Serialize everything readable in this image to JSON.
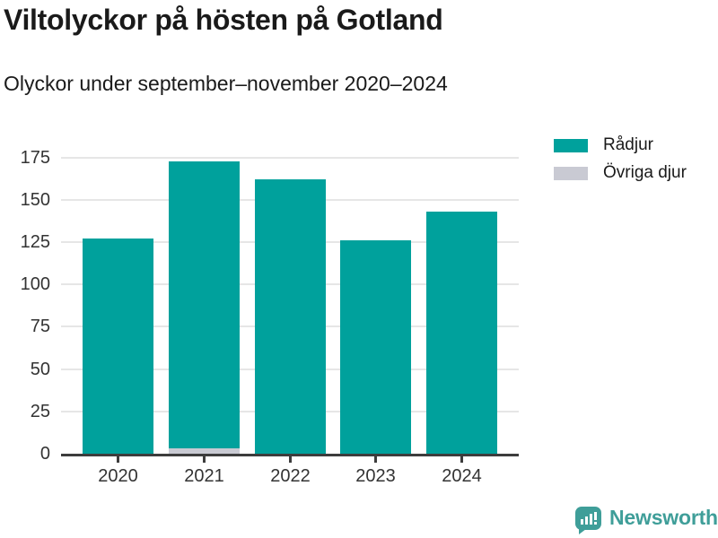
{
  "header": {
    "title": "Viltolyckor på hösten på Gotland",
    "subtitle": "Olyckor under september–november 2020–2024"
  },
  "chart_data": {
    "type": "bar",
    "stacked": true,
    "title": "Viltolyckor på hösten på Gotland",
    "subtitle": "Olyckor under september–november 2020–2024",
    "categories": [
      "2020",
      "2021",
      "2022",
      "2023",
      "2024"
    ],
    "series": [
      {
        "name": "Rådjur",
        "color": "#00a19c",
        "values": [
          127,
          170,
          162,
          126,
          143
        ]
      },
      {
        "name": "Övriga djur",
        "color": "#c9cad3",
        "values": [
          0,
          3,
          0,
          0,
          0
        ]
      }
    ],
    "stacked_totals": [
      127,
      173,
      162,
      126,
      143
    ],
    "xlabel": "",
    "ylabel": "",
    "yticks": [
      0,
      25,
      50,
      75,
      100,
      125,
      150,
      175
    ],
    "ylim": [
      0,
      186
    ],
    "grid": true,
    "legend_position": "right"
  },
  "footer": {
    "brand_name": "Newsworthy",
    "logo_icon": "bar-chart-speech-bubble-icon"
  },
  "colors": {
    "bar_teal": "#00a19c",
    "other_gray": "#c9cad3",
    "gridline": "#e6e6e6",
    "axis": "#3d3d3d",
    "text_dark": "#1a1a1a",
    "tick_label": "#333333",
    "brand_teal": "#3f9e99"
  }
}
